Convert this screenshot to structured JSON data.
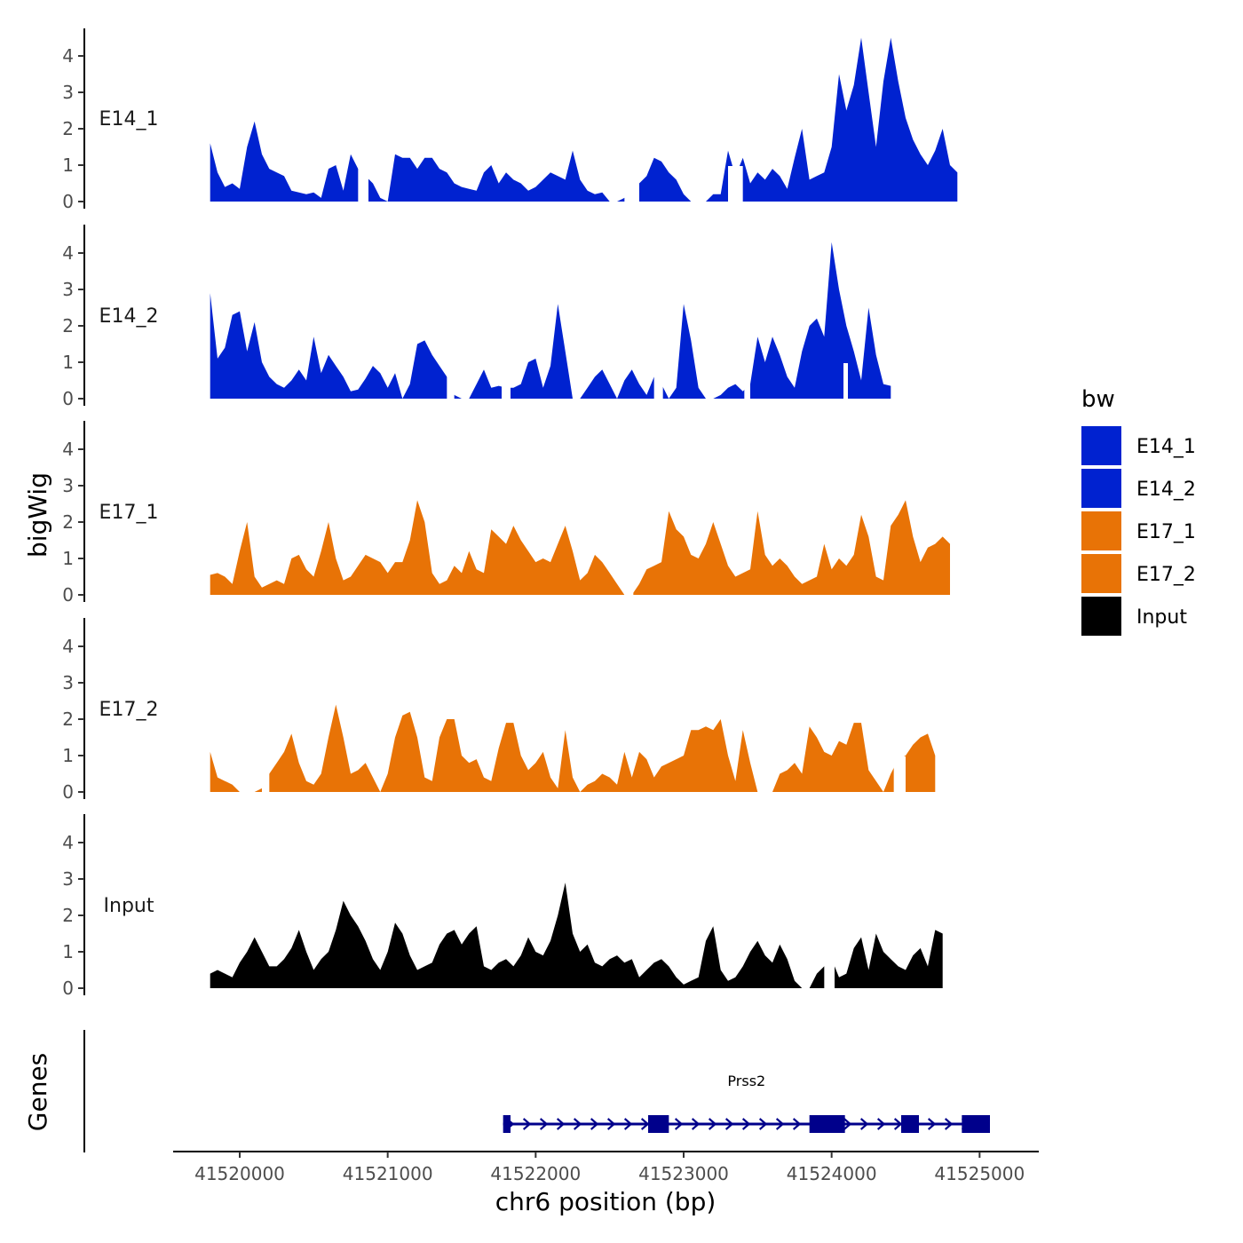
{
  "chart_data": {
    "type": "area",
    "title": "",
    "ylabel": "bigWig",
    "gene_track_label": "Genes",
    "xlabel": "chr6 position (bp)",
    "xlim": [
      41519550,
      41525400
    ],
    "ylim": [
      0,
      4.8
    ],
    "y_ticks": [
      "0",
      "1",
      "2",
      "3",
      "4"
    ],
    "x_ticks": [
      {
        "value": 41520000,
        "label": "41520000"
      },
      {
        "value": 41521000,
        "label": "41521000"
      },
      {
        "value": 41522000,
        "label": "41522000"
      },
      {
        "value": 41523000,
        "label": "41523000"
      },
      {
        "value": 41524000,
        "label": "41524000"
      },
      {
        "value": 41525000,
        "label": "41525000"
      }
    ],
    "x_start": 41519800,
    "x_step": 50,
    "legend": {
      "title": "bw",
      "position": "right",
      "entries": [
        {
          "label": "E14_1",
          "color": "#0022D0"
        },
        {
          "label": "E14_2",
          "color": "#0022D0"
        },
        {
          "label": "E17_1",
          "color": "#E87306"
        },
        {
          "label": "E17_2",
          "color": "#E87306"
        },
        {
          "label": "Input",
          "color": "#000000"
        }
      ]
    },
    "series": [
      {
        "name": "E14_1",
        "color": "#0022D0",
        "values": [
          1.6,
          0.8,
          0.4,
          0.5,
          0.35,
          1.5,
          2.2,
          1.3,
          0.9,
          0.8,
          0.7,
          0.3,
          0.25,
          0.2,
          0.25,
          0.1,
          0.9,
          1.0,
          0.3,
          1.3,
          0.9,
          0.7,
          0.5,
          0.1,
          0.0,
          1.3,
          1.2,
          1.2,
          0.9,
          1.2,
          1.2,
          0.9,
          0.8,
          0.5,
          0.4,
          0.35,
          0.3,
          0.8,
          1.0,
          0.5,
          0.8,
          0.6,
          0.5,
          0.3,
          0.4,
          0.6,
          0.8,
          0.7,
          0.6,
          1.4,
          0.6,
          0.3,
          0.2,
          0.25,
          0.0,
          0.0,
          0.1,
          0.4,
          0.5,
          0.7,
          1.2,
          1.1,
          0.8,
          0.6,
          0.2,
          0.0,
          0.0,
          0.0,
          0.2,
          0.2,
          1.4,
          0.7,
          1.2,
          0.5,
          0.8,
          0.6,
          0.9,
          0.7,
          0.35,
          1.2,
          2.0,
          0.6,
          0.7,
          0.8,
          1.5,
          3.5,
          2.5,
          3.2,
          4.5,
          3.0,
          1.5,
          3.3,
          4.5,
          3.3,
          2.3,
          1.7,
          1.3,
          1.0,
          1.4,
          2.0,
          1.0,
          0.8
        ],
        "gaps": [
          [
            41520800,
            41520870
          ],
          [
            41522600,
            41522700
          ],
          [
            41523300,
            41523400
          ]
        ]
      },
      {
        "name": "E14_2",
        "color": "#0022D0",
        "values": [
          2.9,
          1.1,
          1.4,
          2.3,
          2.4,
          1.3,
          2.1,
          1.0,
          0.6,
          0.4,
          0.3,
          0.5,
          0.8,
          0.5,
          1.7,
          0.7,
          1.2,
          0.9,
          0.6,
          0.2,
          0.25,
          0.55,
          0.9,
          0.7,
          0.3,
          0.7,
          0.0,
          0.4,
          1.5,
          1.6,
          1.2,
          0.9,
          0.6,
          0.1,
          0.0,
          0.0,
          0.4,
          0.8,
          0.3,
          0.35,
          0.3,
          0.3,
          0.4,
          1.0,
          1.1,
          0.3,
          0.9,
          2.6,
          1.3,
          0.0,
          0.0,
          0.3,
          0.6,
          0.8,
          0.4,
          0.0,
          0.5,
          0.8,
          0.4,
          0.1,
          0.6,
          0.4,
          0.0,
          0.3,
          2.6,
          1.6,
          0.3,
          0.0,
          0.0,
          0.1,
          0.3,
          0.4,
          0.2,
          0.4,
          1.7,
          1.0,
          1.7,
          1.2,
          0.6,
          0.3,
          1.3,
          2.0,
          2.2,
          1.7,
          4.3,
          3.0,
          2.0,
          1.3,
          0.5,
          2.5,
          1.2,
          0.4,
          0.35
        ],
        "gaps": [
          [
            41521400,
            41521450
          ],
          [
            41521770,
            41521830
          ],
          [
            41522800,
            41522860
          ],
          [
            41523410,
            41523450
          ],
          [
            41524080,
            41524110
          ]
        ]
      },
      {
        "name": "E17_1",
        "color": "#E87306",
        "values": [
          0.55,
          0.6,
          0.5,
          0.3,
          1.2,
          2.0,
          0.5,
          0.2,
          0.3,
          0.4,
          0.3,
          1.0,
          1.1,
          0.7,
          0.5,
          1.2,
          2.0,
          1.0,
          0.4,
          0.5,
          0.8,
          1.1,
          1.0,
          0.9,
          0.6,
          0.9,
          0.9,
          1.5,
          2.6,
          2.0,
          0.6,
          0.3,
          0.4,
          0.8,
          0.6,
          1.2,
          0.7,
          0.6,
          1.8,
          1.6,
          1.4,
          1.9,
          1.5,
          1.2,
          0.9,
          1.0,
          0.9,
          1.4,
          1.9,
          1.2,
          0.4,
          0.6,
          1.1,
          0.9,
          0.6,
          0.3,
          0.0,
          0.0,
          0.3,
          0.7,
          0.8,
          0.9,
          2.3,
          1.8,
          1.6,
          1.1,
          1.0,
          1.4,
          2.0,
          1.4,
          0.8,
          0.5,
          0.6,
          0.7,
          2.3,
          1.1,
          0.8,
          1.0,
          0.8,
          0.5,
          0.3,
          0.4,
          0.5,
          1.4,
          0.7,
          1.0,
          0.8,
          1.1,
          2.2,
          1.6,
          0.5,
          0.4,
          1.9,
          2.2,
          2.6,
          1.6,
          0.9,
          1.3,
          1.4,
          1.6,
          1.4
        ],
        "gaps": [
          [
            41522600,
            41522660
          ]
        ]
      },
      {
        "name": "E17_2",
        "color": "#E87306",
        "values": [
          1.1,
          0.4,
          0.3,
          0.2,
          0.0,
          0.0,
          0.0,
          0.1,
          0.5,
          0.8,
          1.1,
          1.6,
          0.8,
          0.3,
          0.2,
          0.5,
          1.5,
          2.4,
          1.5,
          0.5,
          0.6,
          0.8,
          0.4,
          0.0,
          0.5,
          1.5,
          2.1,
          2.2,
          1.5,
          0.4,
          0.3,
          1.5,
          2.0,
          2.0,
          1.0,
          0.8,
          0.9,
          0.4,
          0.3,
          1.2,
          1.9,
          1.9,
          1.0,
          0.6,
          0.8,
          1.1,
          0.4,
          0.1,
          1.7,
          0.4,
          0.0,
          0.2,
          0.3,
          0.5,
          0.4,
          0.2,
          1.1,
          0.4,
          1.1,
          0.9,
          0.4,
          0.7,
          0.8,
          0.9,
          1.0,
          1.7,
          1.7,
          1.8,
          1.7,
          2.0,
          1.0,
          0.3,
          1.7,
          0.8,
          0.0,
          0.0,
          0.0,
          0.5,
          0.6,
          0.8,
          0.5,
          1.8,
          1.5,
          1.1,
          1.0,
          1.4,
          1.3,
          1.9,
          1.9,
          0.6,
          0.3,
          0.0,
          0.5,
          0.9,
          1.0,
          1.3,
          1.5,
          1.6,
          1.0
        ],
        "gaps": [
          [
            41520150,
            41520200
          ],
          [
            41523520,
            41523590
          ],
          [
            41524420,
            41524500
          ]
        ]
      },
      {
        "name": "Input",
        "color": "#000000",
        "values": [
          0.4,
          0.5,
          0.4,
          0.3,
          0.7,
          1.0,
          1.4,
          1.0,
          0.6,
          0.6,
          0.8,
          1.1,
          1.6,
          1.0,
          0.5,
          0.8,
          1.0,
          1.6,
          2.4,
          2.0,
          1.7,
          1.3,
          0.8,
          0.5,
          1.0,
          1.8,
          1.5,
          0.9,
          0.5,
          0.6,
          0.7,
          1.2,
          1.5,
          1.6,
          1.2,
          1.5,
          1.7,
          0.6,
          0.5,
          0.7,
          0.8,
          0.6,
          0.9,
          1.4,
          1.0,
          0.9,
          1.3,
          2.0,
          2.9,
          1.5,
          1.0,
          1.2,
          0.7,
          0.6,
          0.8,
          0.9,
          0.7,
          0.8,
          0.3,
          0.5,
          0.7,
          0.8,
          0.6,
          0.3,
          0.1,
          0.2,
          0.3,
          1.3,
          1.7,
          0.5,
          0.2,
          0.3,
          0.6,
          1.0,
          1.3,
          0.9,
          0.7,
          1.2,
          0.8,
          0.2,
          0.0,
          0.0,
          0.4,
          0.6,
          0.8,
          0.3,
          0.4,
          1.1,
          1.4,
          0.5,
          1.5,
          1.0,
          0.8,
          0.6,
          0.5,
          0.9,
          1.1,
          0.6,
          1.6,
          1.5
        ],
        "gaps": [
          [
            41523950,
            41524020
          ]
        ]
      }
    ],
    "gene": {
      "name": "Prss2",
      "color": "#00008B",
      "strand": "+",
      "start": 41521780,
      "end": 41525070,
      "exons": [
        [
          41521780,
          41521830
        ],
        [
          41522760,
          41522900
        ],
        [
          41523850,
          41524090
        ],
        [
          41524470,
          41524590
        ],
        [
          41524880,
          41525070
        ]
      ]
    }
  }
}
